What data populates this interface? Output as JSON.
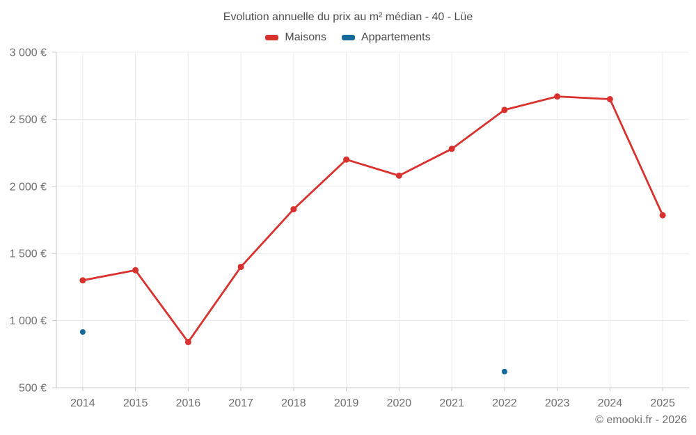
{
  "page": {
    "footer": "© emooki.fr - 2026"
  },
  "colors": {
    "page_bg": "#ffffff",
    "title_text": "#4c4c4c",
    "tick_label_text": "#6e6e6e",
    "grid_line": "#ececec",
    "axis_line": "#c9c9c9"
  },
  "chart_data": {
    "type": "line",
    "title": "Evolution annuelle du prix au m² médian - 40 - Lüe",
    "xlabel": "",
    "ylabel": "",
    "categories": [
      "2014",
      "2015",
      "2016",
      "2017",
      "2018",
      "2019",
      "2020",
      "2021",
      "2022",
      "2023",
      "2024",
      "2025"
    ],
    "series": [
      {
        "name": "Maisons",
        "color": "#d8312e",
        "style": "line+markers",
        "values": [
          1300,
          1375,
          840,
          1400,
          1830,
          2200,
          2080,
          2280,
          2570,
          2670,
          2650,
          1785
        ]
      },
      {
        "name": "Appartements",
        "color": "#17699c",
        "style": "markers",
        "values": [
          915,
          null,
          null,
          null,
          null,
          null,
          null,
          null,
          620,
          null,
          null,
          null
        ]
      }
    ],
    "ylim": [
      500,
      3000
    ],
    "yticks": [
      500,
      1000,
      1500,
      2000,
      2500,
      3000
    ],
    "ytick_labels": [
      "500 €",
      "1 000 €",
      "1 500 €",
      "2 000 €",
      "2 500 €",
      "3 000 €"
    ],
    "grid": true,
    "legend_position": "top"
  }
}
